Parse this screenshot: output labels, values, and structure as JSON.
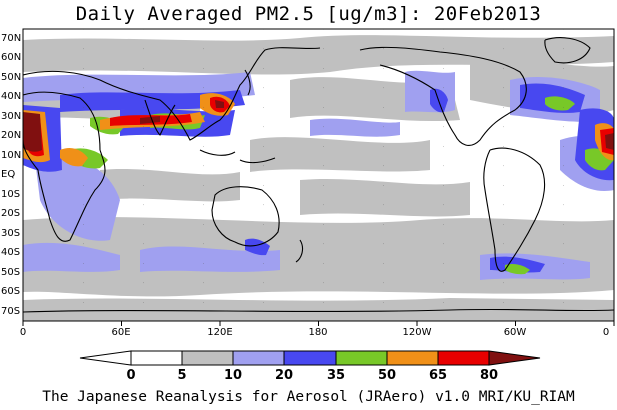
{
  "title": "Daily Averaged PM2.5 [ug/m3]: 20Feb2013",
  "footer": "The Japanese Reanalysis for Aerosol (JRAero) v1.0 MRI/KU_RIAM",
  "lat_labels": [
    "70N",
    "60N",
    "50N",
    "40N",
    "30N",
    "20N",
    "10N",
    "EQ",
    "10S",
    "20S",
    "30S",
    "40S",
    "50S",
    "60S",
    "70S"
  ],
  "lon_labels": [
    "0",
    "60E",
    "120E",
    "180",
    "120W",
    "60W",
    "0"
  ],
  "colorbar": {
    "labels": [
      "0",
      "5",
      "10",
      "20",
      "35",
      "50",
      "65",
      "80"
    ],
    "colors": [
      "#ffffff",
      "#ffffff",
      "#c0c0c0",
      "#a0a0f0",
      "#4848f0",
      "#78c828",
      "#f09018",
      "#e80000",
      "#801010"
    ]
  },
  "colors": {
    "land": "#ffffff",
    "low": "#c0c0c0",
    "light": "#a0a0f0",
    "mid": "#4848f0",
    "green": "#78c828",
    "orange": "#f09018",
    "red": "#e80000",
    "dark": "#801010"
  }
}
